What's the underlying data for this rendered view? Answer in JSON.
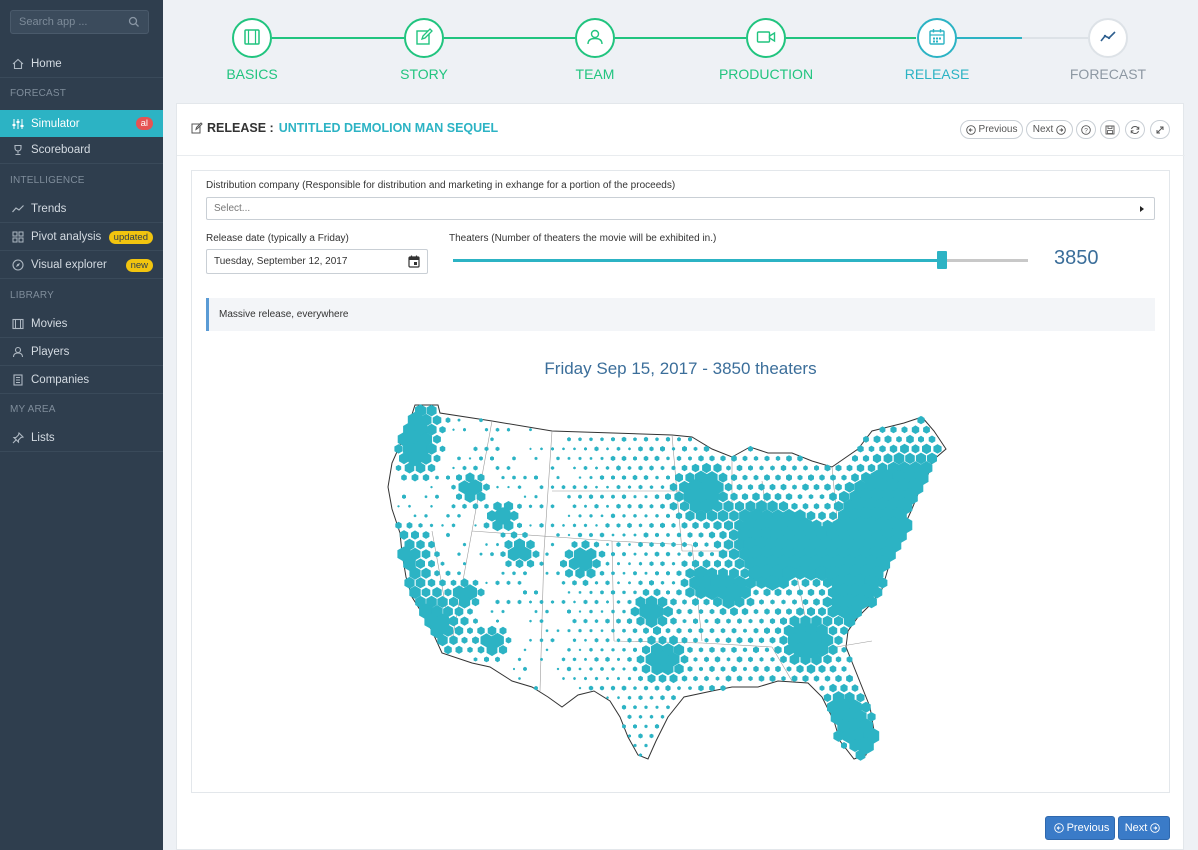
{
  "sidebar": {
    "search_placeholder": "Search app ...",
    "sections": {
      "forecast": "FORECAST",
      "intelligence": "INTELLIGENCE",
      "library": "LIBRARY",
      "my_area": "MY AREA"
    },
    "items": {
      "home": "Home",
      "simulator": "Simulator",
      "simulator_badge": "al",
      "scoreboard": "Scoreboard",
      "trends": "Trends",
      "pivot": "Pivot analysis",
      "pivot_badge": "updated",
      "visual": "Visual explorer",
      "visual_badge": "new",
      "movies": "Movies",
      "players": "Players",
      "companies": "Companies",
      "lists": "Lists"
    }
  },
  "steps": {
    "basics": "BASICS",
    "story": "STORY",
    "team": "TEAM",
    "production": "PRODUCTION",
    "release": "RELEASE",
    "forecast": "FORECAST"
  },
  "panel": {
    "prefix": "RELEASE :",
    "movie_title": "UNTITLED DEMOLION MAN SEQUEL",
    "prev_label": "Previous",
    "next_label": "Next"
  },
  "form": {
    "distribution_label": "Distribution company (Responsible for distribution and marketing in exhange for a portion of the proceeds)",
    "distribution_placeholder": "Select...",
    "release_label": "Release date (typically a Friday)",
    "release_value": "Tuesday, September 12, 2017",
    "theaters_label": "Theaters (Number of theaters the movie will be exhibited in.)",
    "theaters_value": "3850",
    "theaters_fraction": 0.85,
    "info": "Massive release, everywhere",
    "map_title": "Friday Sep 15, 2017 - 3850 theaters"
  },
  "footer": {
    "prev_label": "Previous",
    "next_label": "Next"
  },
  "colors": {
    "accent": "#2cb3c4",
    "green": "#21c47f",
    "sidebar": "#2f3e4e",
    "button": "#3a7bc8"
  }
}
